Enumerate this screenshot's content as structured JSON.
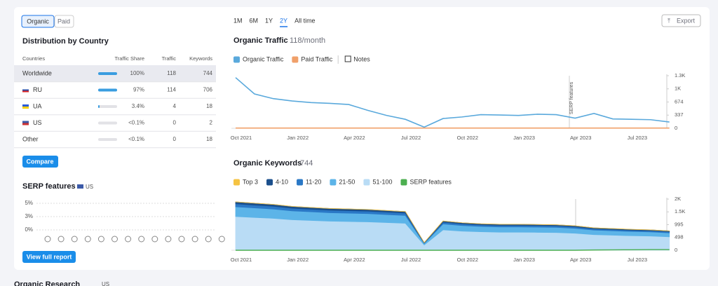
{
  "tabs": [
    "Organic",
    "Paid"
  ],
  "distribution": {
    "title": "Distribution by Country",
    "columns": [
      "Countries",
      "Traffic Share",
      "Traffic",
      "Keywords"
    ],
    "rows": [
      [
        "Worldwide",
        "100%",
        "118",
        "744"
      ],
      [
        "RU",
        "97%",
        "114",
        "706"
      ],
      [
        "UA",
        "3.4%",
        "4",
        "18"
      ],
      [
        "US",
        "<0.1%",
        "0",
        "2"
      ],
      [
        "Other",
        "<0.1%",
        "0",
        "18"
      ]
    ]
  },
  "compare": "Compare",
  "serp": {
    "title": "SERP features",
    "country": "US",
    "ticks": [
      "5%",
      "3%",
      "0%"
    ]
  },
  "view_full_report": "View full report",
  "periods": [
    "1M",
    "6M",
    "1Y",
    "2Y",
    "All time"
  ],
  "export": "Export",
  "traffic": {
    "title": "Organic Traffic",
    "subtitle": "118/month",
    "notes": "Notes",
    "annotation": "SERP features",
    "chart": {
      "type": "line",
      "categories": [
        "Oct 2021",
        null,
        null,
        "Jan 2022",
        null,
        null,
        "Apr 2022",
        null,
        null,
        "Jul 2022",
        null,
        null,
        "Oct 2022",
        null,
        null,
        "Jan 2023",
        null,
        null,
        "Apr 2023",
        null,
        null,
        "Jul 2023",
        null,
        null
      ],
      "series": [
        {
          "name": "Organic Traffic",
          "color": "#5aa9dc",
          "values": [
            1300,
            880,
            760,
            700,
            660,
            640,
            610,
            460,
            330,
            230,
            30,
            250,
            290,
            350,
            340,
            330,
            360,
            350,
            260,
            380,
            240,
            230,
            220,
            160
          ]
        },
        {
          "name": "Paid Traffic",
          "color": "#f0a06a",
          "values": [
            5,
            5,
            5,
            5,
            5,
            5,
            5,
            5,
            5,
            5,
            5,
            5,
            5,
            5,
            5,
            5,
            5,
            5,
            5,
            5,
            5,
            5,
            5,
            5
          ]
        }
      ],
      "ylim": [
        0,
        1348
      ],
      "yticks": [
        0,
        337,
        674,
        {
          "value": 1011,
          "label": "1K"
        },
        {
          "value": 1348,
          "label": "1.3K"
        }
      ]
    }
  },
  "keywords": {
    "title": "Organic Keywords",
    "subtitle": "744",
    "chart": {
      "type": "area",
      "categories": [
        "Oct 2021",
        null,
        null,
        "Jan 2022",
        null,
        null,
        "Apr 2022",
        null,
        null,
        "Jul 2022",
        null,
        null,
        "Oct 2022",
        null,
        null,
        "Jan 2023",
        null,
        null,
        "Apr 2023",
        null,
        null,
        "Jul 2023",
        null,
        null
      ],
      "series": [
        {
          "name": "Top 3",
          "color": "#f5c342",
          "stacked": true,
          "values": [
            2,
            2,
            2,
            2,
            2,
            2,
            2,
            2,
            2,
            2,
            2,
            2,
            2,
            2,
            2,
            2,
            2,
            2,
            2,
            2,
            2,
            2,
            2,
            2
          ]
        },
        {
          "name": "4-10",
          "color": "#1b4f8c",
          "stacked": true,
          "values": [
            76,
            74,
            72,
            69,
            67,
            66,
            65,
            64,
            62,
            61,
            12,
            46,
            43,
            42,
            41,
            41,
            40,
            40,
            38,
            35,
            34,
            33,
            32,
            30
          ]
        },
        {
          "name": "11-20",
          "color": "#2a78c6",
          "stacked": true,
          "values": [
            114,
            111,
            108,
            103,
            101,
            98,
            97,
            96,
            94,
            91,
            18,
            69,
            65,
            62,
            61,
            61,
            61,
            60,
            58,
            53,
            51,
            49,
            48,
            46
          ]
        },
        {
          "name": "21-50",
          "color": "#5cb4e8",
          "stacked": true,
          "values": [
            380,
            370,
            360,
            344,
            336,
            328,
            324,
            320,
            312,
            304,
            60,
            230,
            216,
            208,
            204,
            204,
            202,
            200,
            192,
            176,
            170,
            164,
            160,
            152
          ]
        },
        {
          "name": "51-100",
          "color": "#b9dcf5",
          "stacked": true,
          "values": [
            1311,
            1276,
            1242,
            1187,
            1159,
            1132,
            1118,
            1104,
            1076,
            1049,
            207,
            793,
            745,
            718,
            704,
            704,
            697,
            690,
            662,
            607,
            586,
            566,
            552,
            524
          ]
        },
        {
          "name": "SERP features",
          "color": "#4caf50",
          "stacked": false,
          "values": [
            0,
            0,
            0,
            0,
            0,
            0,
            0,
            0,
            0,
            0,
            0,
            0,
            0,
            0,
            0,
            0,
            0,
            0,
            0,
            10,
            15,
            20,
            25,
            25
          ]
        }
      ],
      "ylim": [
        0,
        1990
      ],
      "yticks": [
        0,
        498,
        995,
        {
          "value": 1493,
          "label": "1.5K"
        },
        {
          "value": 1990,
          "label": "2K"
        }
      ]
    }
  },
  "footer": {
    "title": "Organic Research",
    "country": "US"
  }
}
